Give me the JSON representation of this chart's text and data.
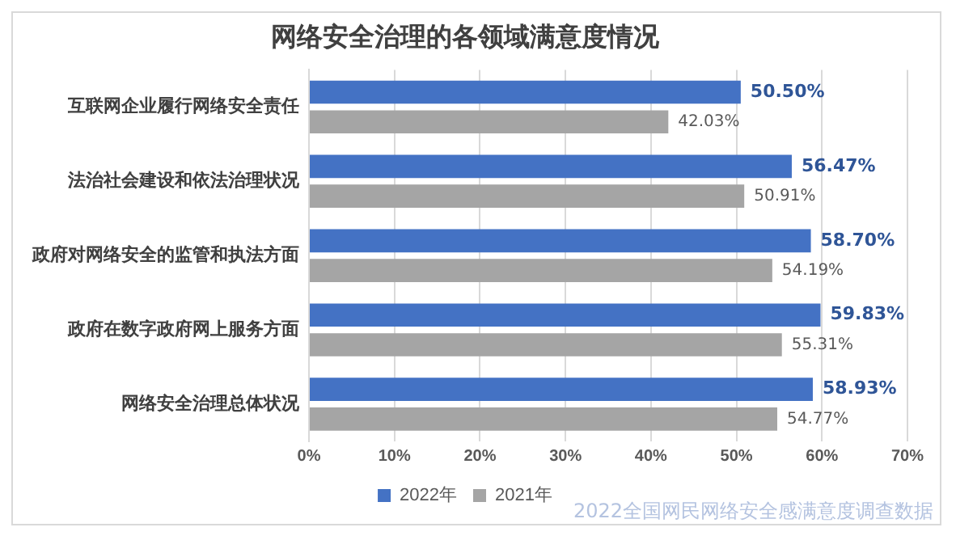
{
  "chart_data": {
    "type": "bar",
    "orientation": "horizontal",
    "title": "网络安全治理的各领域满意度情况",
    "categories": [
      "互联网企业履行网络安全责任",
      "法治社会建设和依法治理状况",
      "政府对网络安全的监管和执法方面",
      "政府在数字政府网上服务方面",
      "网络安全治理总体状况"
    ],
    "series": [
      {
        "name": "2022年",
        "color": "#4472c4",
        "values": [
          50.5,
          56.47,
          58.7,
          59.83,
          58.93
        ],
        "value_labels": [
          "50.50%",
          "56.47%",
          "58.70%",
          "59.83%",
          "58.93%"
        ]
      },
      {
        "name": "2021年",
        "color": "#a5a5a5",
        "values": [
          42.03,
          50.91,
          54.19,
          55.31,
          54.77
        ],
        "value_labels": [
          "42.03%",
          "50.91%",
          "54.19%",
          "55.31%",
          "54.77%"
        ]
      }
    ],
    "xlim": [
      0,
      70
    ],
    "xticks": [
      {
        "value": 0,
        "label": "0%"
      },
      {
        "value": 10,
        "label": "10%"
      },
      {
        "value": 20,
        "label": "20%"
      },
      {
        "value": 30,
        "label": "30%"
      },
      {
        "value": 40,
        "label": "40%"
      },
      {
        "value": 50,
        "label": "50%"
      },
      {
        "value": 60,
        "label": "60%"
      },
      {
        "value": 70,
        "label": "70%"
      }
    ],
    "grid": "x",
    "legend": "bottom",
    "annotations": [
      "2022全国网民网络安全感满意度调查数据"
    ]
  }
}
